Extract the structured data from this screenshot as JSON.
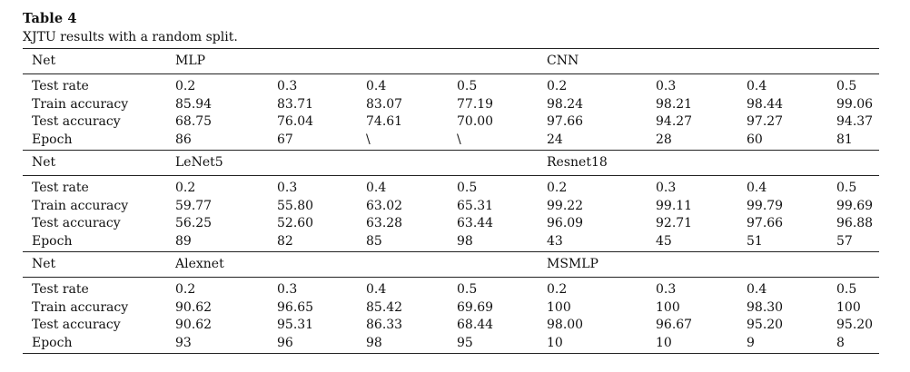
{
  "caption": {
    "label": "Table 4",
    "text": "XJTU results with a random split."
  },
  "net_label": "Net",
  "row_labels": [
    "Test rate",
    "Train accuracy",
    "Test accuracy",
    "Epoch"
  ],
  "groups": [
    {
      "left": {
        "name": "MLP",
        "test_rate": [
          "0.2",
          "0.3",
          "0.4",
          "0.5"
        ],
        "train_accuracy": [
          "85.94",
          "83.71",
          "83.07",
          "77.19"
        ],
        "test_accuracy": [
          "68.75",
          "76.04",
          "74.61",
          "70.00"
        ],
        "epoch": [
          "86",
          "67",
          "\\",
          "\\"
        ]
      },
      "right": {
        "name": "CNN",
        "test_rate": [
          "0.2",
          "0.3",
          "0.4",
          "0.5"
        ],
        "train_accuracy": [
          "98.24",
          "98.21",
          "98.44",
          "99.06"
        ],
        "test_accuracy": [
          "97.66",
          "94.27",
          "97.27",
          "94.37"
        ],
        "epoch": [
          "24",
          "28",
          "60",
          "81"
        ]
      }
    },
    {
      "left": {
        "name": "LeNet5",
        "test_rate": [
          "0.2",
          "0.3",
          "0.4",
          "0.5"
        ],
        "train_accuracy": [
          "59.77",
          "55.80",
          "63.02",
          "65.31"
        ],
        "test_accuracy": [
          "56.25",
          "52.60",
          "63.28",
          "63.44"
        ],
        "epoch": [
          "89",
          "82",
          "85",
          "98"
        ]
      },
      "right": {
        "name": "Resnet18",
        "test_rate": [
          "0.2",
          "0.3",
          "0.4",
          "0.5"
        ],
        "train_accuracy": [
          "99.22",
          "99.11",
          "99.79",
          "99.69"
        ],
        "test_accuracy": [
          "96.09",
          "92.71",
          "97.66",
          "96.88"
        ],
        "epoch": [
          "43",
          "45",
          "51",
          "57"
        ]
      }
    },
    {
      "left": {
        "name": "Alexnet",
        "test_rate": [
          "0.2",
          "0.3",
          "0.4",
          "0.5"
        ],
        "train_accuracy": [
          "90.62",
          "96.65",
          "85.42",
          "69.69"
        ],
        "test_accuracy": [
          "90.62",
          "95.31",
          "86.33",
          "68.44"
        ],
        "epoch": [
          "93",
          "96",
          "98",
          "95"
        ]
      },
      "right": {
        "name": "MSMLP",
        "test_rate": [
          "0.2",
          "0.3",
          "0.4",
          "0.5"
        ],
        "train_accuracy": [
          "100",
          "100",
          "98.30",
          "100"
        ],
        "test_accuracy": [
          "98.00",
          "96.67",
          "95.20",
          "95.20"
        ],
        "epoch": [
          "10",
          "10",
          "9",
          "8"
        ]
      }
    }
  ]
}
